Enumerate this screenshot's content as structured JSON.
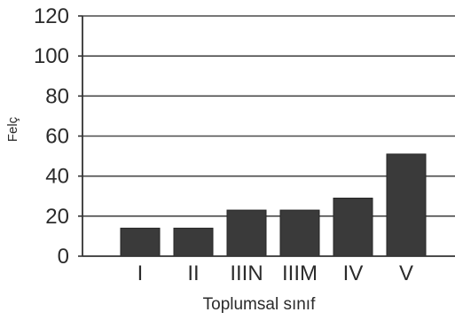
{
  "chart_data": {
    "type": "bar",
    "categories": [
      "I",
      "II",
      "IIIN",
      "IIIM",
      "IV",
      "V"
    ],
    "values": [
      14,
      14,
      23,
      23,
      29,
      51
    ],
    "title": "",
    "xlabel": "Toplumsal sınıf",
    "ylabel": "Felç",
    "ylim": [
      0,
      120
    ],
    "yticks": [
      0,
      20,
      40,
      60,
      80,
      100,
      120
    ],
    "grid": true,
    "legend": "none",
    "colors": {
      "bar": "#3a3a3a",
      "bar_edge": "#262626",
      "grid": "#4a4a4a",
      "axis": "#333333",
      "text": "#2b2b2b"
    }
  }
}
